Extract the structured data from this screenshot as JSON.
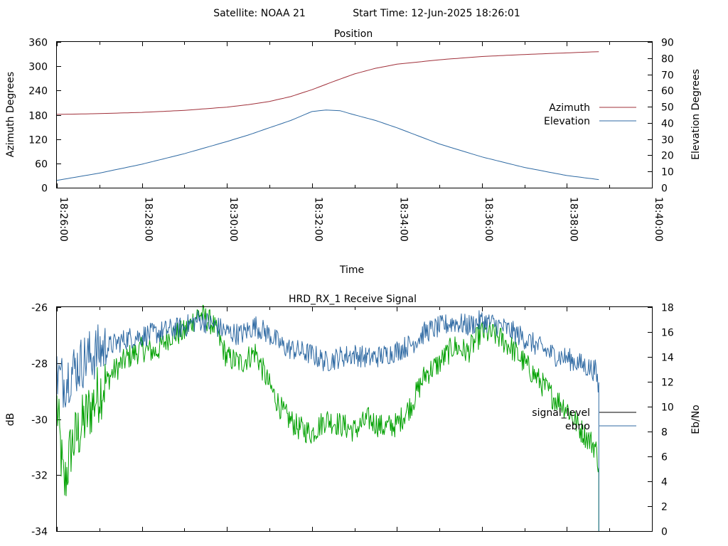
{
  "header": {
    "satellite": "Satellite: NOAA 21",
    "start_time": "Start Time: 12-Jun-2025 18:26:01"
  },
  "chart_data": [
    {
      "type": "line",
      "title": "Position",
      "xlabel": "Time",
      "ylabel": "Azimuth Degrees",
      "y2label": "Elevation Degrees",
      "x_ticks": [
        "18:26:00",
        "18:28:00",
        "18:30:00",
        "18:32:00",
        "18:34:00",
        "18:36:00",
        "18:38:00",
        "18:40:00"
      ],
      "xlim": [
        "18:26:00",
        "18:40:00"
      ],
      "ylim": [
        0,
        360
      ],
      "y_ticks": [
        0,
        60,
        120,
        180,
        240,
        300,
        360
      ],
      "y2lim": [
        0,
        90
      ],
      "y2_ticks": [
        0,
        10,
        20,
        30,
        40,
        50,
        60,
        70,
        80,
        90
      ],
      "legend_position": "right",
      "grid": false,
      "series": [
        {
          "name": "Azimuth",
          "axis": "y",
          "color": "#a0303a",
          "x": [
            "18:26:00",
            "18:27:00",
            "18:28:00",
            "18:29:00",
            "18:30:00",
            "18:30:30",
            "18:31:00",
            "18:31:30",
            "18:32:00",
            "18:32:30",
            "18:33:00",
            "18:33:30",
            "18:34:00",
            "18:35:00",
            "18:36:00",
            "18:37:00",
            "18:38:00",
            "18:38:45"
          ],
          "values": [
            181,
            183,
            186,
            191,
            199,
            205,
            213,
            225,
            242,
            262,
            281,
            295,
            305,
            316,
            324,
            329,
            333,
            336
          ]
        },
        {
          "name": "Elevation",
          "axis": "y2",
          "color": "#2f6aa3",
          "x": [
            "18:26:00",
            "18:27:00",
            "18:28:00",
            "18:29:00",
            "18:30:00",
            "18:30:30",
            "18:31:00",
            "18:31:30",
            "18:32:00",
            "18:32:20",
            "18:32:40",
            "18:33:00",
            "18:33:30",
            "18:34:00",
            "18:35:00",
            "18:36:00",
            "18:37:00",
            "18:38:00",
            "18:38:45"
          ],
          "values": [
            4.5,
            9,
            14.5,
            21,
            28.5,
            32.5,
            37,
            41.5,
            47,
            48,
            47.5,
            45,
            41.5,
            37,
            27,
            19,
            12.5,
            7.5,
            5
          ]
        }
      ]
    },
    {
      "type": "line",
      "title": "HRD_RX_1 Receive Signal",
      "ylabel": "dB",
      "y2label": "Eb/No",
      "xlim": [
        "18:26:00",
        "18:40:00"
      ],
      "ylim": [
        -34,
        -26
      ],
      "y_ticks": [
        -34,
        -32,
        -30,
        -28,
        -26
      ],
      "y2lim": [
        0,
        18
      ],
      "y2_ticks": [
        0,
        2,
        4,
        6,
        8,
        10,
        12,
        14,
        16,
        18
      ],
      "legend_position": "right",
      "grid": false,
      "series": [
        {
          "name": "signal_level",
          "axis": "y",
          "color": "#00a000",
          "legend_color": "#000000",
          "x": [
            "18:26:00",
            "18:26:10",
            "18:26:20",
            "18:26:40",
            "18:27:00",
            "18:27:20",
            "18:27:40",
            "18:28:00",
            "18:28:20",
            "18:28:40",
            "18:29:00",
            "18:29:20",
            "18:29:40",
            "18:30:00",
            "18:30:20",
            "18:30:40",
            "18:31:00",
            "18:31:20",
            "18:31:40",
            "18:32:00",
            "18:32:20",
            "18:32:40",
            "18:33:00",
            "18:33:20",
            "18:33:40",
            "18:34:00",
            "18:34:20",
            "18:34:40",
            "18:35:00",
            "18:35:20",
            "18:35:40",
            "18:36:00",
            "18:36:20",
            "18:36:40",
            "18:37:00",
            "18:37:20",
            "18:37:40",
            "18:38:00",
            "18:38:20",
            "18:38:40",
            "18:38:45"
          ],
          "values": [
            -29.5,
            -32.5,
            -31.0,
            -30.0,
            -29.0,
            -28.3,
            -27.8,
            -27.5,
            -27.6,
            -27.0,
            -26.9,
            -26.2,
            -26.6,
            -27.8,
            -28.0,
            -27.6,
            -28.8,
            -29.8,
            -30.3,
            -30.5,
            -30.0,
            -30.2,
            -30.4,
            -30.0,
            -30.3,
            -30.2,
            -29.5,
            -28.4,
            -28.0,
            -27.4,
            -27.6,
            -26.9,
            -27.0,
            -27.4,
            -28.0,
            -28.6,
            -29.2,
            -29.6,
            -30.4,
            -31.0,
            -31.6
          ]
        },
        {
          "name": "ebno",
          "axis": "y2",
          "color": "#2f6aa3",
          "x": [
            "18:26:00",
            "18:26:10",
            "18:26:20",
            "18:26:40",
            "18:27:00",
            "18:27:20",
            "18:27:40",
            "18:28:00",
            "18:28:20",
            "18:28:40",
            "18:29:00",
            "18:29:20",
            "18:29:40",
            "18:30:00",
            "18:30:20",
            "18:30:40",
            "18:31:00",
            "18:31:20",
            "18:31:40",
            "18:32:00",
            "18:32:20",
            "18:32:40",
            "18:33:00",
            "18:33:20",
            "18:33:40",
            "18:34:00",
            "18:34:20",
            "18:34:40",
            "18:35:00",
            "18:35:20",
            "18:35:40",
            "18:36:00",
            "18:36:20",
            "18:36:40",
            "18:37:00",
            "18:37:20",
            "18:37:40",
            "18:38:00",
            "18:38:20",
            "18:38:40",
            "18:38:45"
          ],
          "values": [
            12.5,
            12.0,
            12.8,
            13.8,
            14.5,
            15.0,
            15.5,
            15.7,
            15.9,
            16.2,
            16.4,
            17.0,
            16.6,
            16.0,
            15.8,
            16.5,
            15.8,
            14.8,
            14.5,
            14.2,
            13.6,
            14.0,
            14.2,
            13.9,
            14.1,
            14.5,
            15.0,
            16.0,
            16.4,
            16.8,
            16.5,
            16.9,
            16.6,
            16.1,
            15.5,
            14.8,
            14.2,
            13.9,
            13.4,
            12.9,
            11.5
          ]
        }
      ]
    }
  ]
}
